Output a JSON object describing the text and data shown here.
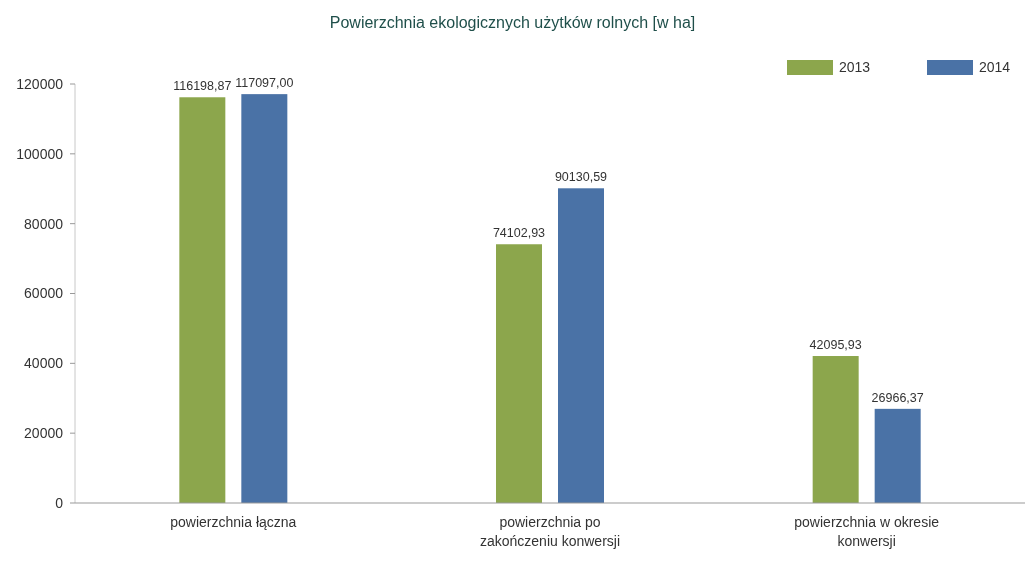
{
  "chart_data": {
    "type": "bar",
    "title": "Powierzchnia ekologicznych użytków rolnych [w ha]",
    "categories": [
      "powierzchnia łączna",
      "powierzchnia po zakończeniu konwersji",
      "powierzchnia w okresie konwersji"
    ],
    "series": [
      {
        "name": "2013",
        "color": "#8ca64c",
        "values": [
          116198.87,
          74102.93,
          42095.93
        ],
        "value_labels": [
          "116198,87",
          "74102,93",
          "42095,93"
        ]
      },
      {
        "name": "2014",
        "color": "#4a72a6",
        "values": [
          117097.0,
          90130.59,
          26966.37
        ],
        "value_labels": [
          "117097,00",
          "90130,59",
          "26966,37"
        ]
      }
    ],
    "ylim": [
      0,
      120000
    ],
    "yticks": [
      0,
      20000,
      40000,
      60000,
      80000,
      100000,
      120000
    ],
    "grid": false,
    "legend": "top right"
  }
}
